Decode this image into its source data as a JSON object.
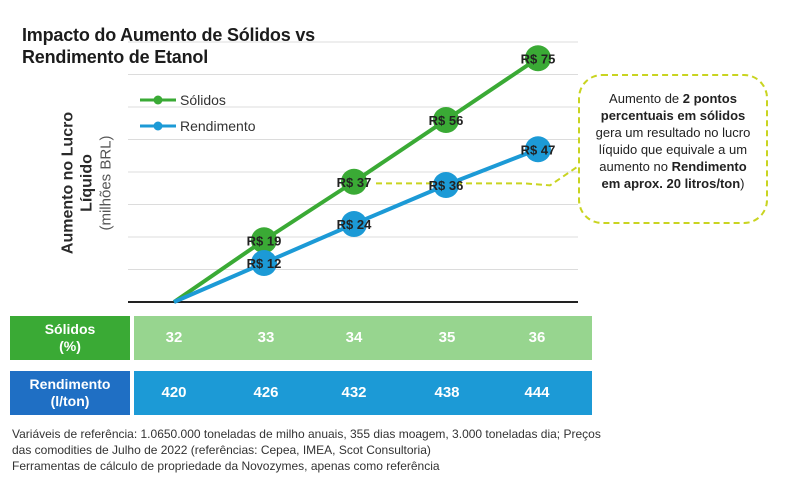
{
  "title": "Impacto do Aumento de Sólidos vs Rendimento de Etanol",
  "ylabel_main": "Aumento no Lucro Líquido",
  "ylabel_unit": "(milhões BRL)",
  "chart_data": {
    "type": "line",
    "title": "Impacto do Aumento de Sólidos vs Rendimento de Etanol",
    "ylabel": "Aumento no Lucro Líquido (milhões BRL)",
    "ylim": [
      0,
      80
    ],
    "x": [
      0,
      1,
      2,
      3,
      4
    ],
    "series": [
      {
        "name": "Sólidos",
        "color": "#3aaa35",
        "values": [
          0,
          19,
          37,
          56,
          75
        ],
        "labels": [
          "",
          "R$ 19",
          "R$ 37",
          "R$ 56",
          "R$ 75"
        ]
      },
      {
        "name": "Rendimento",
        "color": "#1c9ad6",
        "values": [
          0,
          12,
          24,
          36,
          47
        ],
        "labels": [
          "",
          "R$ 12",
          "R$ 24",
          "R$ 36",
          "R$ 47"
        ]
      }
    ],
    "legend": [
      "Sólidos",
      "Rendimento"
    ],
    "grid": true,
    "annotation": "Aumento de 2 pontos percentuais em sólidos gera um resultado no lucro líquido que equivale a um aumento no Rendimento em aprox. 20 litros/ton)"
  },
  "table": {
    "solidos_header": [
      "Sólidos",
      "(%)"
    ],
    "solidos_values": [
      "32",
      "33",
      "34",
      "35",
      "36"
    ],
    "rend_header": [
      "Rendimento",
      "(l/ton)"
    ],
    "rend_values": [
      "420",
      "426",
      "432",
      "438",
      "444"
    ]
  },
  "callout": {
    "t1": "Aumento de ",
    "b1": "2 pontos percentuais em sólidos",
    "t2": " gera um resultado no lucro líquido que equivale a um aumento no ",
    "b2": "Rendimento em aprox. 20 litros/ton",
    "t3": ")"
  },
  "notes": [
    "Variáveis de referência: 1.0650.000 toneladas de milho anuais, 355 dias moagem, 3.000 toneladas dia; Preços das comodities de Julho de 2022 (referências: Cepea, IMEA, Scot Consultoria)",
    "Ferramentas de cálculo de propriedade da Novozymes, apenas como referência"
  ],
  "colors": {
    "green": "#3aaa35",
    "blue": "#1c9ad6",
    "callout": "#c9d420"
  }
}
